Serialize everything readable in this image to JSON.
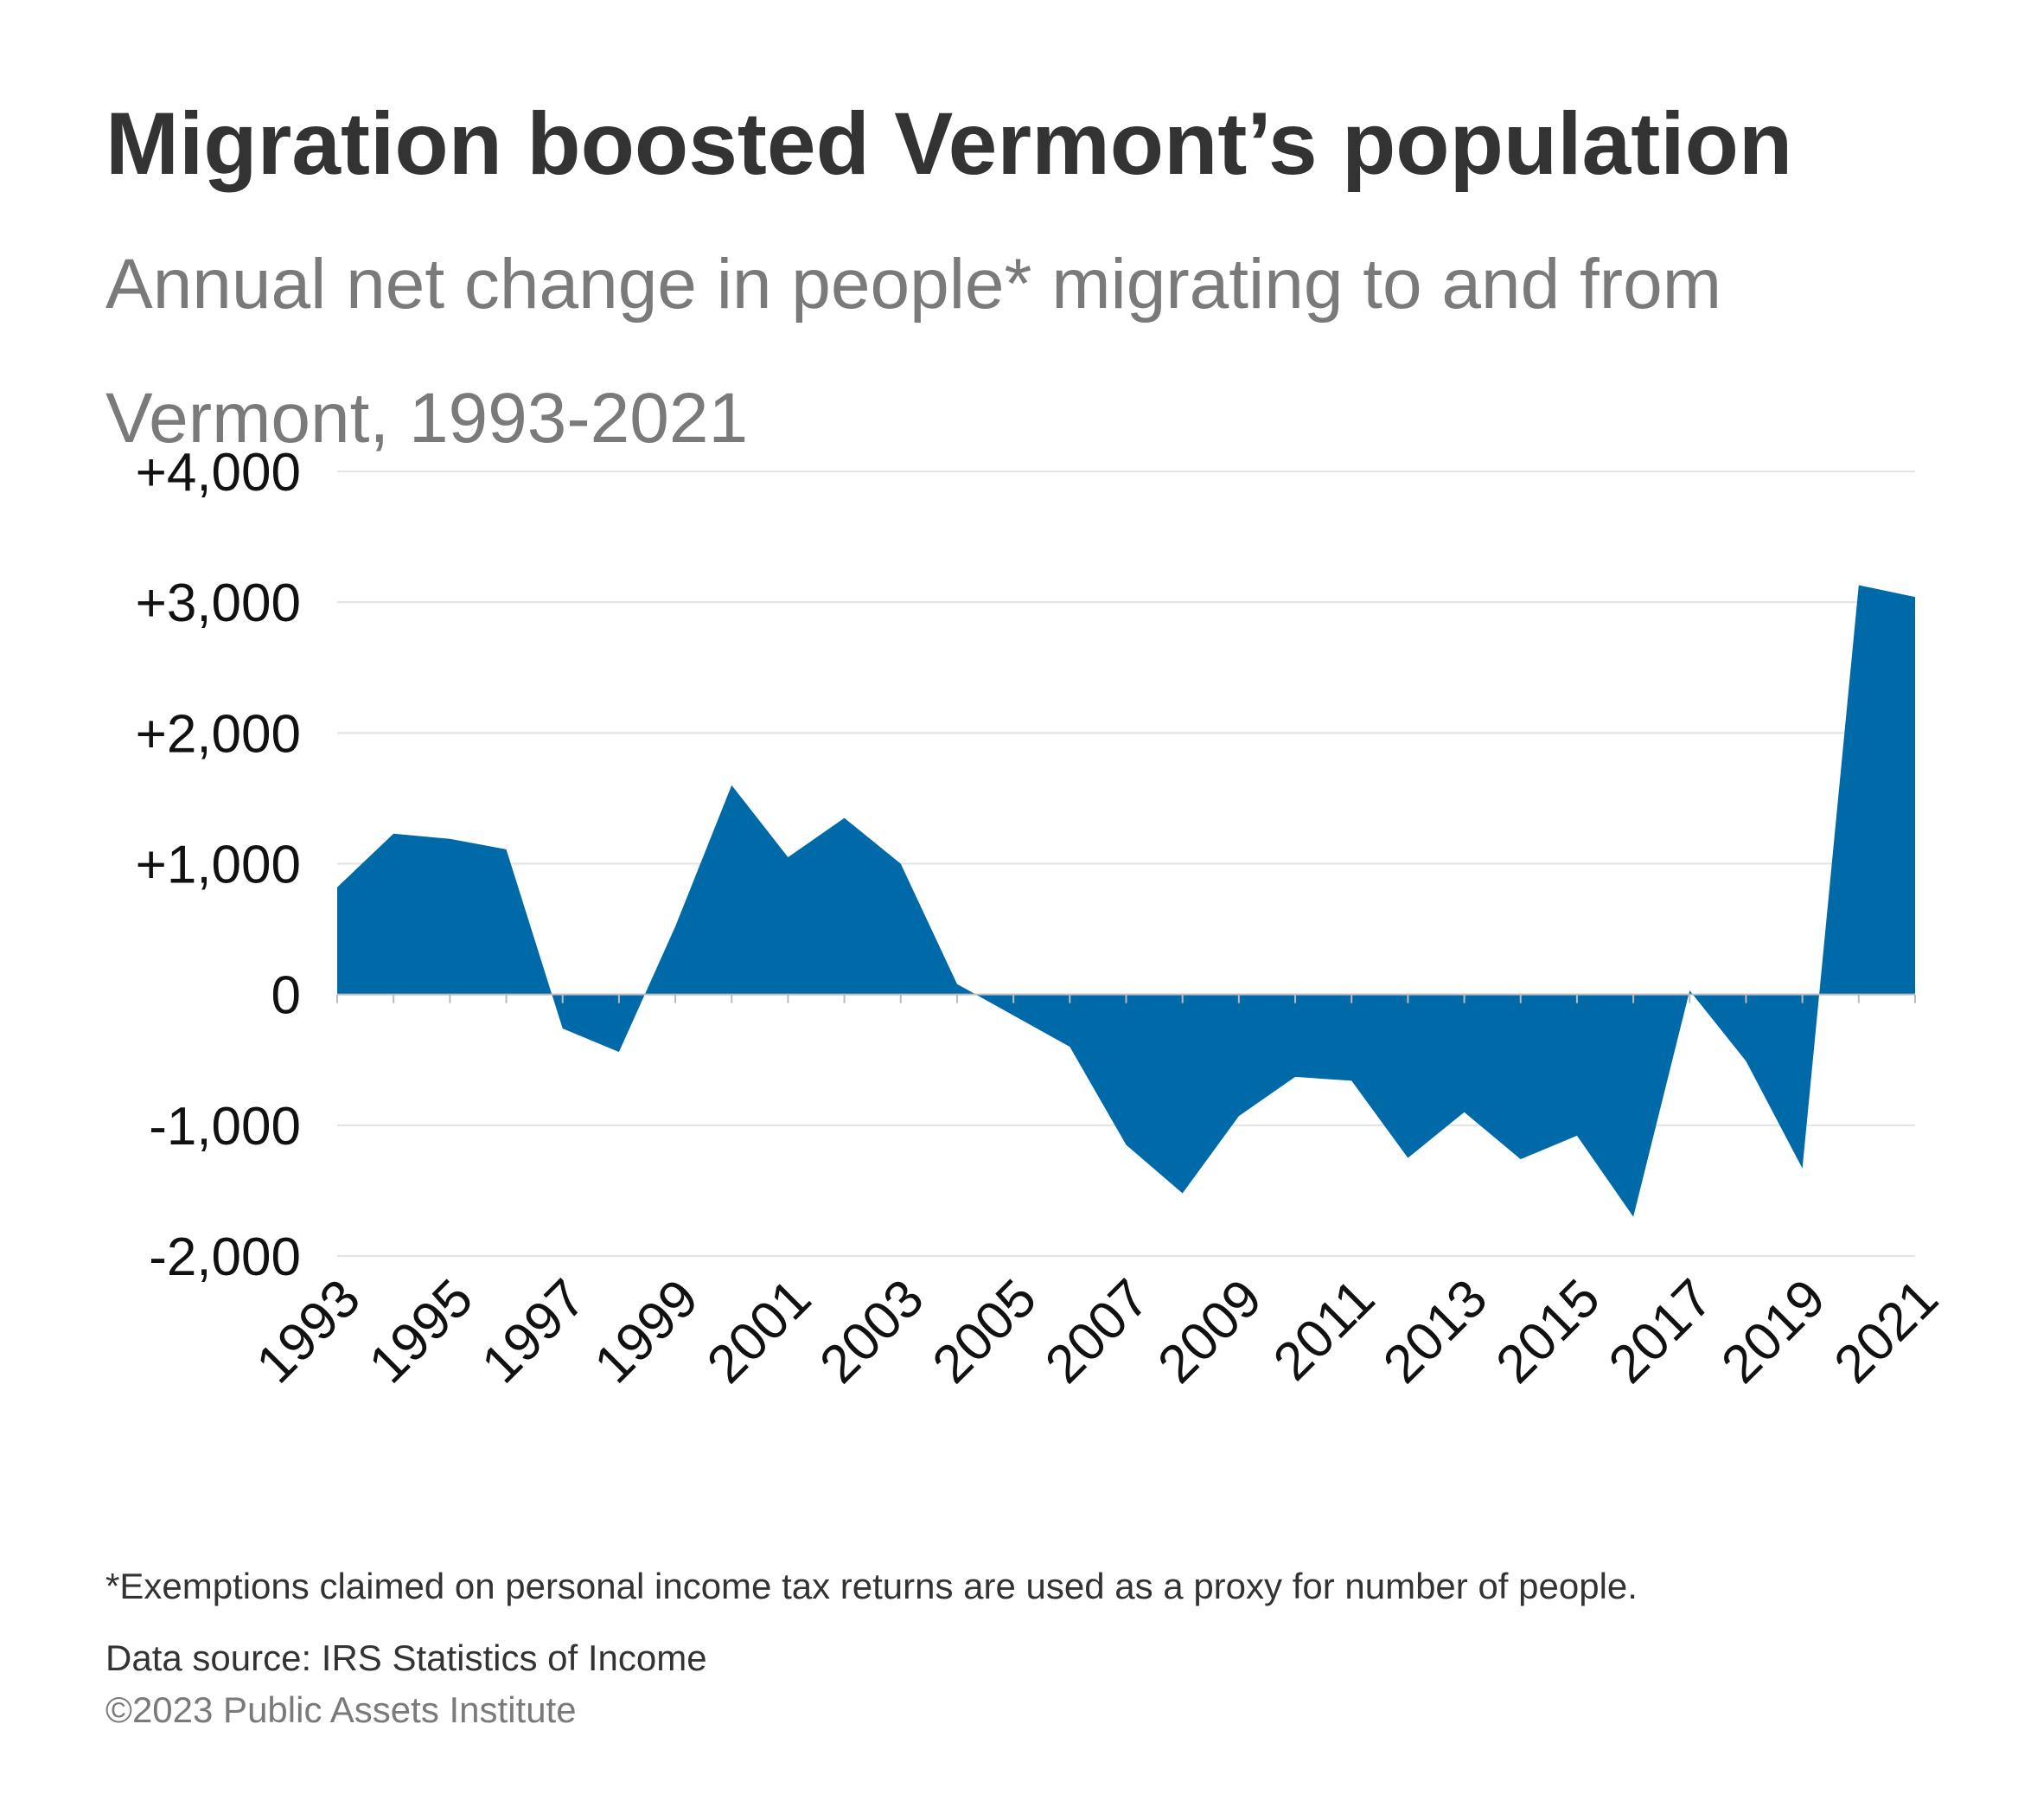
{
  "title": {
    "main": "Migration boosted Vermont’s population",
    "subtitle": "Annual net change in people* migrating to and from Vermont, 1993-2021"
  },
  "chart_data": {
    "type": "area",
    "x": [
      1993,
      1994,
      1995,
      1996,
      1997,
      1998,
      1999,
      2000,
      2001,
      2002,
      2003,
      2004,
      2005,
      2006,
      2007,
      2008,
      2009,
      2010,
      2011,
      2012,
      2013,
      2014,
      2015,
      2016,
      2017,
      2018,
      2019,
      2020,
      2021
    ],
    "series": [
      {
        "values": [
          820,
          1230,
          1190,
          1110,
          -260,
          -440,
          520,
          1600,
          1050,
          1350,
          1000,
          80,
          -160,
          -400,
          -1150,
          -1520,
          -930,
          -630,
          -660,
          -1250,
          -900,
          -1260,
          -1080,
          -1700,
          30,
          -510,
          -1330,
          3130,
          3040
        ]
      }
    ],
    "y_ticks": [
      "+4,000",
      "+3,000",
      "+2,000",
      "+1,000",
      "0",
      "-1,000",
      "-2,000"
    ],
    "x_ticks": [
      "1993",
      "1995",
      "1997",
      "1999",
      "2001",
      "2003",
      "2005",
      "2007",
      "2009",
      "2011",
      "2013",
      "2015",
      "2017",
      "2019",
      "2021"
    ],
    "ylim": [
      -2000,
      4000
    ],
    "xlim": [
      1993,
      2021
    ],
    "grid": true,
    "colors": {
      "area": "#006aa9",
      "grid": "#e3e3e3",
      "baseline": "#bbbbbb"
    }
  },
  "footer": {
    "note": "*Exemptions claimed on personal income tax returns are used as a proxy for number of people.",
    "source": "Data source: IRS Statistics of Income",
    "copyright": "©2023 Public Assets Institute"
  }
}
